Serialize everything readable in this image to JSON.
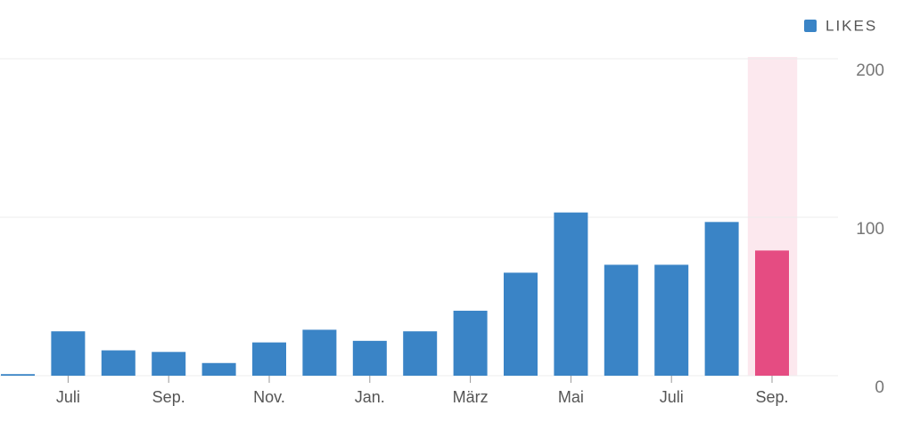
{
  "chart_data": {
    "type": "bar",
    "categories": [
      null,
      "Juli",
      null,
      "Sep.",
      null,
      "Nov.",
      null,
      "Jan.",
      null,
      "März",
      null,
      "Mai",
      null,
      "Juli",
      null,
      "Sep."
    ],
    "series": [
      {
        "name": "LIKES",
        "color": "#3a84c6",
        "values": [
          1,
          28,
          16,
          15,
          8,
          21,
          29,
          22,
          28,
          41,
          65,
          103,
          70,
          70,
          97,
          79
        ]
      }
    ],
    "highlight": {
      "index": 15,
      "color": "#e54c82",
      "band_color": "#fce8ee"
    },
    "ylim": [
      0,
      200
    ],
    "yticks": [
      0,
      100,
      200
    ],
    "grid": true,
    "legend": "top-right"
  }
}
